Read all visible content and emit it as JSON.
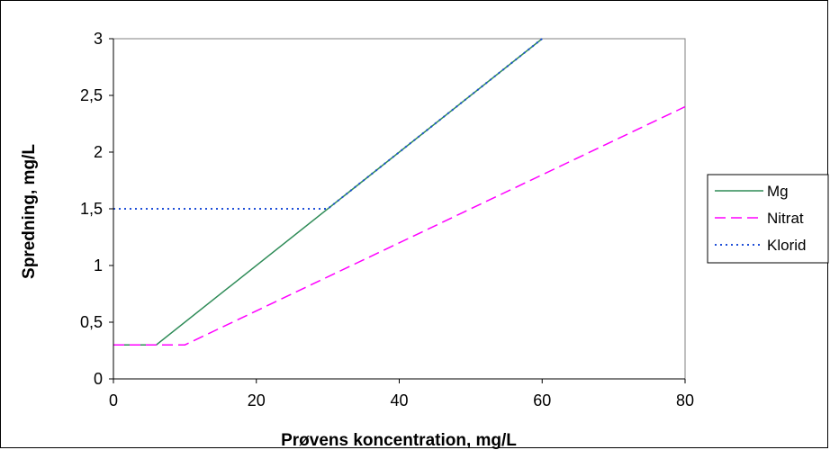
{
  "chart_data": {
    "type": "line",
    "xlabel": "Prøvens koncentration, mg/L",
    "ylabel": "Spredning, mg/L",
    "xlim": [
      0,
      80
    ],
    "ylim": [
      0,
      3
    ],
    "x_ticks": [
      "0",
      "20",
      "40",
      "60",
      "80"
    ],
    "y_ticks": [
      "0",
      "0,5",
      "1",
      "1,5",
      "2",
      "2,5",
      "3"
    ],
    "grid": false,
    "legend_position": "right",
    "series": [
      {
        "name": "Mg",
        "color": "#2e8b57",
        "style": "solid",
        "x": [
          0,
          6,
          60
        ],
        "y": [
          0.3,
          0.3,
          3.0
        ]
      },
      {
        "name": "Nitrat",
        "color": "#ff00ff",
        "style": "dashed",
        "x": [
          0,
          10,
          20,
          40,
          60,
          80
        ],
        "y": [
          0.3,
          0.3,
          0.6,
          1.2,
          1.8,
          2.4
        ]
      },
      {
        "name": "Klorid",
        "color": "#1f4fd8",
        "style": "dotted",
        "x": [
          0,
          30,
          60
        ],
        "y": [
          1.5,
          1.5,
          3.0
        ]
      }
    ]
  }
}
